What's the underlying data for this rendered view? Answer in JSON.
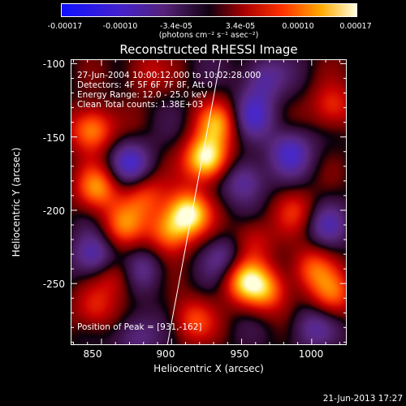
{
  "colorbar": {
    "ticks": [
      "-0.00017",
      "-0.00010",
      "-3.4e-05",
      "3.4e-05",
      "0.00010",
      "0.00017"
    ],
    "unit": "(photons cm⁻² s⁻¹ asec⁻²)",
    "range": [
      -0.00017,
      0.00017
    ]
  },
  "chart_data": {
    "type": "heatmap",
    "title": "Reconstructed RHESSI Image",
    "xlabel": "Heliocentric X (arcsec)",
    "ylabel": "Heliocentric Y (arcsec)",
    "xlim": [
      828,
      1025
    ],
    "ylim": [
      -292,
      -97
    ],
    "xticks": [
      "850",
      "900",
      "950",
      "1000"
    ],
    "xtick_values": [
      850,
      900,
      950,
      1000
    ],
    "yticks": [
      "-100",
      "-150",
      "-200",
      "-250"
    ],
    "ytick_values": [
      -100,
      -150,
      -200,
      -250
    ],
    "colormap": "red-purple-blue",
    "peak": {
      "x": 931,
      "y": -162
    },
    "limb_line": [
      [
        897,
        -292
      ],
      [
        935,
        -97
      ]
    ],
    "sources": [
      {
        "x": 925,
        "y": -165,
        "amp": 1.0
      },
      {
        "x": 912,
        "y": -202,
        "amp": 0.9
      },
      {
        "x": 933,
        "y": -140,
        "amp": 0.6
      },
      {
        "x": 898,
        "y": -215,
        "amp": 0.6
      },
      {
        "x": 843,
        "y": -145,
        "amp": 0.7
      },
      {
        "x": 847,
        "y": -185,
        "amp": 0.6
      },
      {
        "x": 865,
        "y": -210,
        "amp": 0.5
      },
      {
        "x": 880,
        "y": -190,
        "amp": 0.45
      },
      {
        "x": 952,
        "y": -248,
        "amp": 0.7
      },
      {
        "x": 968,
        "y": -255,
        "amp": 0.55
      },
      {
        "x": 1000,
        "y": -240,
        "amp": 0.5
      },
      {
        "x": 1015,
        "y": -258,
        "amp": 0.5
      },
      {
        "x": 958,
        "y": -220,
        "amp": 0.35
      },
      {
        "x": 1015,
        "y": -130,
        "amp": 0.45
      },
      {
        "x": 988,
        "y": -200,
        "amp": 0.35
      },
      {
        "x": 915,
        "y": -275,
        "amp": 0.45
      },
      {
        "x": 845,
        "y": -268,
        "amp": 0.4
      },
      {
        "x": 860,
        "y": -245,
        "amp": 0.35
      },
      {
        "x": 880,
        "y": -105,
        "amp": 0.3
      },
      {
        "x": 845,
        "y": -232,
        "amp": -0.5
      },
      {
        "x": 870,
        "y": -168,
        "amp": -0.5
      },
      {
        "x": 952,
        "y": -180,
        "amp": -0.45
      },
      {
        "x": 958,
        "y": -135,
        "amp": -0.45
      },
      {
        "x": 985,
        "y": -160,
        "amp": -0.5
      },
      {
        "x": 965,
        "y": -110,
        "amp": -0.4
      },
      {
        "x": 1000,
        "y": -280,
        "amp": -0.35
      },
      {
        "x": 875,
        "y": -285,
        "amp": -0.35
      },
      {
        "x": 938,
        "y": -232,
        "amp": -0.35
      },
      {
        "x": 1010,
        "y": -210,
        "amp": -0.35
      },
      {
        "x": 880,
        "y": -240,
        "amp": -0.3
      }
    ]
  },
  "overlay": {
    "lines": [
      "27-Jun-2004 10:00:12.000 to 10:02:28.000",
      "Detectors: 4F 5F 6F 7F 8F, Att 0",
      "Energy Range: 12.0 - 25.0 keV",
      "Clean    Total counts: 1.38E+03"
    ],
    "peak_label": "Position of Peak = [931,-162]"
  },
  "timestamp": "21-Jun-2013 17:27"
}
